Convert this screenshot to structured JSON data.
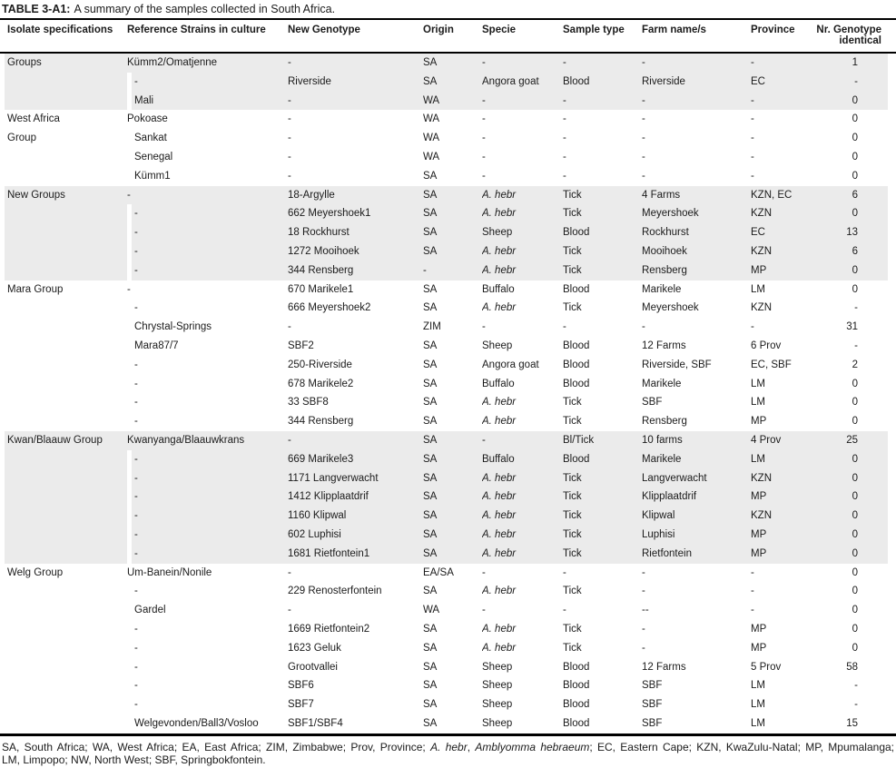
{
  "title": {
    "label": "TABLE 3-A1:",
    "text": "A summary of the samples collected in South Africa."
  },
  "columns": [
    "Isolate specifications",
    "Reference Strains in culture",
    "New Genotype",
    "Origin",
    "Specie",
    "Sample type",
    "Farm name/s",
    "Province",
    "Nr. Genotype\nidentical"
  ],
  "groups": [
    {
      "name": "Groups",
      "shaded": true,
      "rows": [
        {
          "c": [
            "Kümm2/Omatjenne",
            "-",
            "SA",
            "-",
            "-",
            "-",
            "-",
            "1"
          ]
        },
        {
          "c": [
            "-",
            "Riverside",
            "SA",
            "Angora goat",
            "Blood",
            "Riverside",
            "EC",
            "-"
          ]
        },
        {
          "c": [
            "Mali",
            "-",
            "WA",
            "-",
            "-",
            "-",
            "-",
            "0"
          ]
        }
      ]
    },
    {
      "name": "West Africa\nGroup",
      "shaded": false,
      "rows": [
        {
          "c": [
            "Pokoase",
            "-",
            "WA",
            "-",
            "-",
            "-",
            "-",
            "0"
          ]
        },
        {
          "c": [
            "Sankat",
            "-",
            "WA",
            "-",
            "-",
            "-",
            "-",
            "0"
          ]
        },
        {
          "c": [
            "Senegal",
            "-",
            "WA",
            "-",
            "-",
            "-",
            "-",
            "0"
          ]
        },
        {
          "c": [
            "Kümm1",
            "-",
            "SA",
            "-",
            "-",
            "-",
            "-",
            "0"
          ]
        }
      ]
    },
    {
      "name": "New Groups",
      "shaded": true,
      "rows": [
        {
          "c": [
            "-",
            "18-Argylle",
            "SA",
            "A. hebr",
            "Tick",
            "4 Farms",
            "KZN, EC",
            "6"
          ],
          "i": [
            3
          ]
        },
        {
          "c": [
            "-",
            "662 Meyershoek1",
            "SA",
            "A. hebr",
            "Tick",
            "Meyershoek",
            "KZN",
            "0"
          ],
          "i": [
            3
          ]
        },
        {
          "c": [
            "-",
            "18 Rockhurst",
            "SA",
            "Sheep",
            "Blood",
            "Rockhurst",
            "EC",
            "13"
          ]
        },
        {
          "c": [
            "-",
            "1272 Mooihoek",
            "SA",
            "A. hebr",
            "Tick",
            "Mooihoek",
            "KZN",
            "6"
          ],
          "i": [
            3
          ]
        },
        {
          "c": [
            "-",
            "344 Rensberg",
            "-",
            "A. hebr",
            "Tick",
            "Rensberg",
            "MP",
            "0"
          ],
          "i": [
            3
          ]
        }
      ]
    },
    {
      "name": "Mara Group",
      "shaded": false,
      "rows": [
        {
          "c": [
            "-",
            "670 Marikele1",
            "SA",
            "Buffalo",
            "Blood",
            "Marikele",
            "LM",
            "0"
          ]
        },
        {
          "c": [
            "-",
            "666 Meyershoek2",
            "SA",
            "A. hebr",
            "Tick",
            "Meyershoek",
            "KZN",
            "-"
          ],
          "i": [
            3
          ]
        },
        {
          "c": [
            "Chrystal-Springs",
            "-",
            "ZIM",
            "-",
            "-",
            "-",
            "-",
            "31"
          ]
        },
        {
          "c": [
            "Mara87/7",
            "SBF2",
            "SA",
            "Sheep",
            "Blood",
            "12 Farms",
            "6 Prov",
            "-"
          ]
        },
        {
          "c": [
            "-",
            "250-Riverside",
            "SA",
            "Angora goat",
            "Blood",
            "Riverside, SBF",
            "EC, SBF",
            "2"
          ]
        },
        {
          "c": [
            "-",
            "678 Marikele2",
            "SA",
            "Buffalo",
            "Blood",
            "Marikele",
            "LM",
            "0"
          ]
        },
        {
          "c": [
            "-",
            "33 SBF8",
            "SA",
            "A. hebr",
            "Tick",
            "SBF",
            "LM",
            "0"
          ],
          "i": [
            3
          ]
        },
        {
          "c": [
            "-",
            "344 Rensberg",
            "SA",
            "A. hebr",
            "Tick",
            "Rensberg",
            "MP",
            "0"
          ],
          "i": [
            3
          ]
        }
      ]
    },
    {
      "name": "Kwan/Blaauw Group",
      "shaded": true,
      "rows": [
        {
          "c": [
            "Kwanyanga/Blaauwkrans",
            "-",
            "SA",
            "-",
            "Bl/Tick",
            "10 farms",
            "4 Prov",
            "25"
          ]
        },
        {
          "c": [
            "-",
            "669 Marikele3",
            "SA",
            "Buffalo",
            "Blood",
            "Marikele",
            "LM",
            "0"
          ]
        },
        {
          "c": [
            "-",
            "1171 Langverwacht",
            "SA",
            "A. hebr",
            "Tick",
            "Langverwacht",
            "KZN",
            "0"
          ],
          "i": [
            3
          ]
        },
        {
          "c": [
            "-",
            "1412 Klipplaatdrif",
            "SA",
            "A. hebr",
            "Tick",
            "Klipplaatdrif",
            "MP",
            "0"
          ],
          "i": [
            3
          ]
        },
        {
          "c": [
            "-",
            "1160 Klipwal",
            "SA",
            "A. hebr",
            "Tick",
            "Klipwal",
            "KZN",
            "0"
          ],
          "i": [
            3
          ]
        },
        {
          "c": [
            "-",
            "602 Luphisi",
            "SA",
            "A. hebr",
            "Tick",
            "Luphisi",
            "MP",
            "0"
          ],
          "i": [
            3
          ]
        },
        {
          "c": [
            "-",
            "1681 Rietfontein1",
            "SA",
            "A. hebr",
            "Tick",
            "Rietfontein",
            "MP",
            "0"
          ],
          "i": [
            3
          ]
        }
      ]
    },
    {
      "name": "Welg Group",
      "shaded": false,
      "rows": [
        {
          "c": [
            "Um-Banein/Nonile",
            "-",
            "EA/SA",
            "-",
            "-",
            "-",
            "-",
            "0"
          ]
        },
        {
          "c": [
            "-",
            "229 Renosterfontein",
            "SA",
            "A. hebr",
            "Tick",
            "-",
            "-",
            "0"
          ],
          "i": [
            3
          ]
        },
        {
          "c": [
            "Gardel",
            "-",
            "WA",
            "-",
            "-",
            "--",
            "-",
            "0"
          ]
        },
        {
          "c": [
            "-",
            "1669 Rietfontein2",
            "SA",
            "A. hebr",
            "Tick",
            "-",
            "MP",
            "0"
          ],
          "i": [
            3
          ]
        },
        {
          "c": [
            "-",
            "1623 Geluk",
            "SA",
            "A. hebr",
            "Tick",
            "-",
            "MP",
            "0"
          ],
          "i": [
            3
          ]
        },
        {
          "c": [
            "-",
            "Grootvallei",
            "SA",
            "Sheep",
            "Blood",
            "12 Farms",
            "5 Prov",
            "58"
          ]
        },
        {
          "c": [
            "-",
            "SBF6",
            "SA",
            "Sheep",
            "Blood",
            "SBF",
            "LM",
            "-"
          ]
        },
        {
          "c": [
            "-",
            "SBF7",
            "SA",
            "Sheep",
            "Blood",
            "SBF",
            "LM",
            "-"
          ]
        },
        {
          "c": [
            "Welgevonden/Ball3/Vosloo",
            "SBF1/SBF4",
            "SA",
            "Sheep",
            "Blood",
            "SBF",
            "LM",
            "15"
          ]
        }
      ]
    }
  ],
  "footnote": {
    "line1_part1": "SA, South Africa; WA, West Africa; EA, East Africa; ZIM, Zimbabwe; Prov, Province; ",
    "line1_italic1": "A. hebr",
    "line1_part2": ", ",
    "line1_italic2": "Amblyomma hebraeum",
    "line1_part3": "; EC, Eastern Cape; KZN, KwaZulu-Natal; MP, Mpumalanga;",
    "line2": "LM, Limpopo; NW, North West; SBF, Springbokfontein."
  },
  "colors": {
    "band": "#ebebeb",
    "text": "#1b1b1b",
    "border": "#000000"
  }
}
